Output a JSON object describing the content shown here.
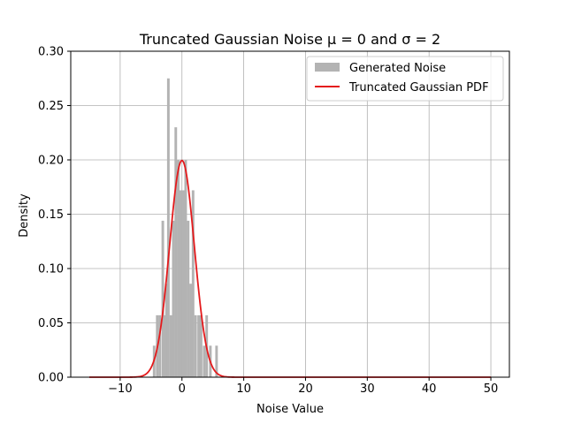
{
  "chart_data": {
    "type": "bar",
    "title": "Truncated Gaussian Noise μ = 0 and σ = 2",
    "xlabel": "Noise Value",
    "ylabel": "Density",
    "xlim": [
      -18,
      53
    ],
    "ylim": [
      0,
      0.3
    ],
    "xticks": [
      -10,
      0,
      10,
      20,
      30,
      40,
      50
    ],
    "yticks": [
      0.0,
      0.05,
      0.1,
      0.15,
      0.2,
      0.25,
      0.3
    ],
    "xtick_labels": [
      "−10",
      "0",
      "10",
      "20",
      "30",
      "40",
      "50"
    ],
    "ytick_labels": [
      "0.00",
      "0.05",
      "0.10",
      "0.15",
      "0.20",
      "0.25",
      "0.30"
    ],
    "grid": true,
    "legend_position": "top-right",
    "colors": {
      "bars": "#b3b3b3",
      "pdf": "#e41a1c"
    },
    "series": [
      {
        "name": "Generated Noise",
        "kind": "histogram",
        "bin_width": 0.42,
        "bins": [
          {
            "x": -4.5,
            "y": 0.029
          },
          {
            "x": -4.0,
            "y": 0.057
          },
          {
            "x": -3.6,
            "y": 0.057
          },
          {
            "x": -3.1,
            "y": 0.144
          },
          {
            "x": -2.7,
            "y": 0.057
          },
          {
            "x": -2.5,
            "y": 0.086
          },
          {
            "x": -2.2,
            "y": 0.275
          },
          {
            "x": -1.8,
            "y": 0.057
          },
          {
            "x": -1.4,
            "y": 0.144
          },
          {
            "x": -1.0,
            "y": 0.23
          },
          {
            "x": -0.6,
            "y": 0.2
          },
          {
            "x": -0.2,
            "y": 0.172
          },
          {
            "x": 0.2,
            "y": 0.172
          },
          {
            "x": 0.6,
            "y": 0.2
          },
          {
            "x": 1.0,
            "y": 0.144
          },
          {
            "x": 1.4,
            "y": 0.086
          },
          {
            "x": 1.8,
            "y": 0.172
          },
          {
            "x": 2.2,
            "y": 0.057
          },
          {
            "x": 2.7,
            "y": 0.057
          },
          {
            "x": 3.1,
            "y": 0.057
          },
          {
            "x": 3.6,
            "y": 0.029
          },
          {
            "x": 4.0,
            "y": 0.057
          },
          {
            "x": 4.6,
            "y": 0.029
          },
          {
            "x": 5.6,
            "y": 0.029
          }
        ]
      },
      {
        "name": "Truncated Gaussian PDF",
        "kind": "line",
        "mu": 0,
        "sigma": 2,
        "x_range": [
          -15,
          50
        ]
      }
    ]
  }
}
